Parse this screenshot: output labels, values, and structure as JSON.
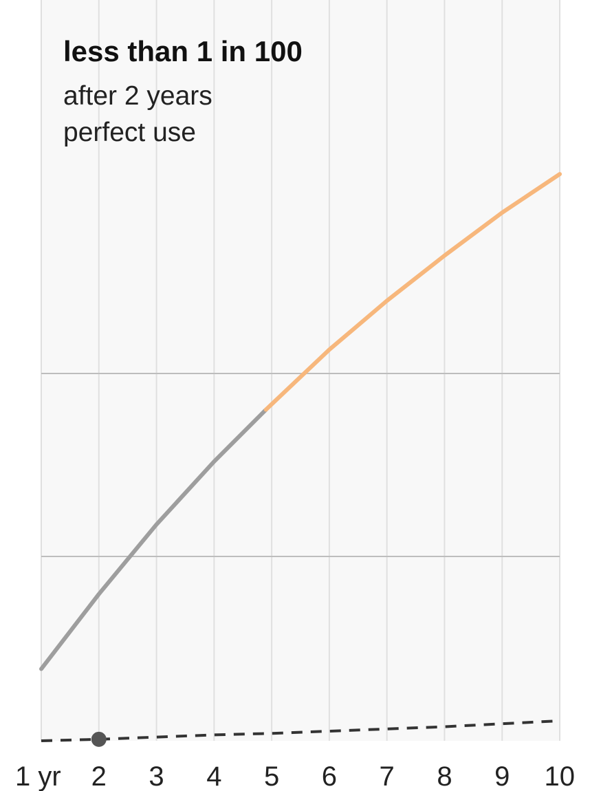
{
  "chart_data": {
    "type": "line",
    "annotation": {
      "title": "less than 1 in 100",
      "line1": "after 2 years",
      "line2": "perfect use"
    },
    "x_tick_labels": [
      "1 yr",
      "2",
      "3",
      "4",
      "5",
      "6",
      "7",
      "8",
      "9",
      "10"
    ],
    "xlim": [
      1,
      10
    ],
    "ylim": [
      0,
      1
    ],
    "grid": true,
    "series": [
      {
        "style": "solid",
        "x": [
          1,
          2,
          3,
          4,
          4.9,
          6,
          7,
          8,
          9,
          10
        ],
        "y": [
          0.097,
          0.198,
          0.292,
          0.377,
          0.447,
          0.528,
          0.594,
          0.655,
          0.713,
          0.765
        ],
        "segments": [
          {
            "x_range": [
              1,
              4.9
            ],
            "color": "#9e9e9e"
          },
          {
            "x_range": [
              4.9,
              10
            ],
            "color": "#f7b77c"
          }
        ]
      },
      {
        "style": "dashed",
        "color": "#333333",
        "x": [
          1,
          2,
          3,
          4,
          5,
          6,
          7,
          8,
          9,
          10
        ],
        "y": [
          0,
          0.002,
          0.005,
          0.008,
          0.01,
          0.013,
          0.016,
          0.019,
          0.023,
          0.027
        ]
      }
    ],
    "highlight_point": {
      "x": 2,
      "y": 0.002,
      "color": "#555555"
    },
    "colors": {
      "plot_background": "#f8f8f8",
      "minor_grid": "#e0e0e0",
      "major_grid": "#bdbdbd"
    }
  }
}
